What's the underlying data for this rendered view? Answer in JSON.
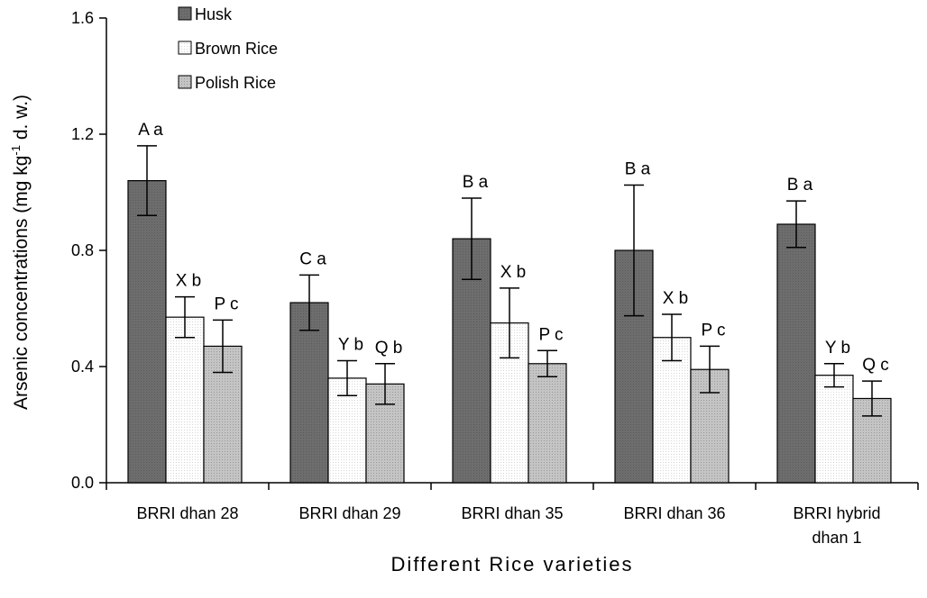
{
  "chart_data": {
    "type": "bar",
    "xlabel": "Different Rice varieties",
    "ylabel_prefix": "Arsenic concentrations (mg kg",
    "ylabel_sup": "-1",
    "ylabel_suffix": " d. w.)",
    "ylim": [
      0,
      1.6
    ],
    "yticks": [
      "0.0",
      "0.4",
      "0.8",
      "1.2",
      "1.6"
    ],
    "categories": [
      [
        "BRRI dhan 28"
      ],
      [
        "BRRI dhan 29"
      ],
      [
        "BRRI dhan 35"
      ],
      [
        "BRRI dhan 36"
      ],
      [
        "BRRI hybrid",
        "dhan 1"
      ]
    ],
    "legend_position": "top-left",
    "series": [
      {
        "name": "Husk",
        "color": "#6d6d6d",
        "values": [
          1.04,
          0.62,
          0.84,
          0.8,
          0.89
        ],
        "errors": [
          0.12,
          0.095,
          0.14,
          0.225,
          0.08
        ],
        "labels": [
          "A a",
          "C a",
          "B a",
          "B a",
          "B a"
        ]
      },
      {
        "name": "Brown Rice",
        "color": "#ffffff",
        "values": [
          0.57,
          0.36,
          0.55,
          0.5,
          0.37
        ],
        "errors": [
          0.07,
          0.06,
          0.12,
          0.08,
          0.04
        ],
        "labels": [
          "X b",
          "Y b",
          "X b",
          "X b",
          "Y b"
        ]
      },
      {
        "name": "Polish Rice",
        "color": "#c0c0c0",
        "values": [
          0.47,
          0.34,
          0.41,
          0.39,
          0.29
        ],
        "errors": [
          0.09,
          0.07,
          0.045,
          0.08,
          0.06
        ],
        "labels": [
          "P c",
          "Q b",
          "P c",
          "P c",
          "Q c"
        ]
      }
    ]
  }
}
